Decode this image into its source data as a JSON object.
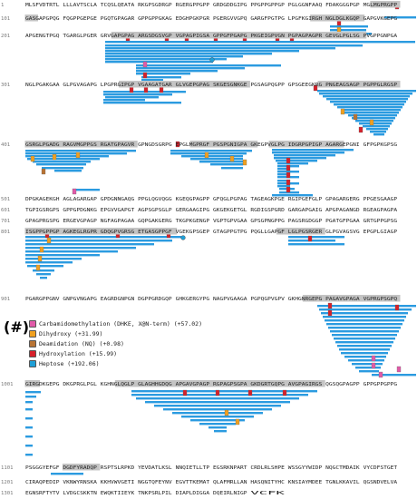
{
  "rows": [
    {
      "n": "1",
      "groups": [
        "MLSFVDTRTL",
        "LLLAVTSCLA",
        "TCQSLQEATA",
        "RKGPSGDRGP",
        "RGERGPPGPP",
        "GRDGDDGIPG",
        "PPGPPGPPGP",
        "PGLGGNFAAQ",
        "FDAKGGGPGP",
        "MGLMGPRGPP"
      ]
    },
    {
      "n": "101",
      "groups": [
        "GASGAPGPQG",
        "FQGPPGEPGE",
        "PGQTGPAGAR",
        "GPPGPPGKAG",
        "EDGHPGKPGR",
        "PGERGVVGPQ",
        "GARGFPGTPG",
        "LPGFKGIRGH",
        "NGLDGLKGQP",
        "GAPGVKGEPG"
      ]
    },
    {
      "n": "201",
      "groups": [
        "APGENGTPGQ",
        "TGARGLPGER",
        "GRVGAPGPAG",
        "ARGSDGSVGP",
        "VGPAGPIGSA",
        "GPPGFPGAPG",
        "PKGEIGPVGN",
        "PGPAGPAGPR",
        "GEVGLPGLSG",
        "PVGPPGNPGA"
      ]
    },
    {
      "n": "301",
      "groups": [
        "NGLPGAKGAA",
        "GLPGVAGAPG",
        "LPGPRGIPGP",
        "VGAAGATGAR",
        "GLVGEPGPAG",
        "SKGESGNKGE",
        "PGSAGPQGPP",
        "GPSGEEGKRG",
        "PNGEAGSAGP",
        "PGPPGLRGSP"
      ]
    },
    {
      "n": "401",
      "groups": [
        "GSRGLPGADG",
        "RAGVMGPPGS",
        "RGATGPAGVR",
        "GPNGDSGRPG",
        "EPGLMGPRGF",
        "PGSPGNIGPA",
        "GKEGPVGLPG",
        "IDGRPGPIGP",
        "AGARGEPGNI",
        "GFPGPKGPSG"
      ]
    },
    {
      "n": "501",
      "groups": [
        "DPGKAGEKGH",
        "AGLAGARGAP",
        "GPDGNNGAQG",
        "PPGLQGVQGG",
        "KGEQGPAGPP",
        "GFQGLPGPAG",
        "TAGEAGKPGE",
        "RGIPGEFGLP",
        "GPAGARGERG",
        "PPGESGAAGP"
      ]
    },
    {
      "n": "601",
      "groups": [
        "TGPIGSRGPS",
        "GPPGPDGNKG",
        "EPGVVGAPGT",
        "AGPSGPSGLP",
        "GERGAAGIPG",
        "GKGEKGETGL",
        "RGDIGSPGRD",
        "GARGAPGAIG",
        "APGPAGANGD",
        "RGEAGPAGPA"
      ]
    },
    {
      "n": "701",
      "groups": [
        "GPAGPRGSPG",
        "ERGEVGPAGP",
        "NGFAGPAGAA",
        "GQPGAKGERG",
        "TKGPKGENGP",
        "VGPTGPVGAA",
        "GPSGPNGPPG",
        "PAGSRGDGGP",
        "PGATGFPGAA",
        "GRTGPPGPSG"
      ]
    },
    {
      "n": "801",
      "groups": [
        "ISGPPGPPGP",
        "AGKEGLRGPR",
        "GDQGPVGRSG",
        "ETGASGPPGF",
        "VGEKGPSGEP",
        "GTAGPPGTPG",
        "PQGLLGAPGF",
        "LGLPGSRGER",
        "GLPGVAGSVG",
        "EPGPLGIAGP"
      ]
    },
    {
      "n": "901",
      "groups": [
        "PGARGPPGNV",
        "GNPGVNGAPG",
        "EAGRDGNPGN",
        "DGPPGRDGQP",
        "GHKGERGYPG",
        "NAGPVGAAGA",
        "PGPQGPVGPV",
        "GKHGNRGEPG",
        "PAGAVGPAGA",
        "VGPRGPSGPQ"
      ]
    },
    {
      "n": "1001",
      "groups": [
        "GIRGDKGEPG",
        "DKGPRGLPGL",
        "KGHNGLQGLP",
        "GLAGHHGDQG",
        "APGAVGPAGP",
        "RGPAGPSGPA",
        "GKDGRTGQPG",
        "AVGPAGIRGS",
        "QGSQGPAGPP",
        "GPPGPPGPPG"
      ]
    },
    {
      "n": "1101",
      "groups": [
        "PSGGGYEFGF",
        "DGDFYRADQP",
        "RSPTSLRPKD",
        "YEVDATLKSL",
        "NNQIETLLTP",
        "EGSRKNPART",
        "CRDLRLSHPE",
        "WSSGYYWIDP",
        "NQGCTMDAIK",
        "VYCDFSTGET"
      ]
    },
    {
      "n": "1201",
      "groups": [
        "CIRAQPEDIP",
        "VKNWYRNSKA",
        "KKHVWVGETI",
        "NGGTQFEYNV",
        "EGVTTKEMAT",
        "QLAFMRLLAN",
        "HASQNITYHC",
        "KNSIAYMDEE",
        "TGNLKKAVIL",
        "QGSNDVELVA"
      ]
    },
    {
      "n": "1301",
      "groups": [
        "EGNSRFTYTV",
        "LVDGCSKKTN",
        "EWQKTIIEYK",
        "TNKPSRLPIL",
        "DIAPLDIGGA",
        "DQEIRLNIGP",
        "VCFK"
      ]
    }
  ],
  "legend": {
    "marker": "(#)",
    "items": [
      {
        "code": "C",
        "label": "Carbamidomethylation (DHKE, X@N-term) (+57.02)",
        "color": "#e05aa8"
      },
      {
        "code": "O",
        "label": "Dihydroxy (+31.99)",
        "color": "#f0a020"
      },
      {
        "code": "D",
        "label": "Deamidation (NQ) (+0.98)",
        "color": "#b87333"
      },
      {
        "code": "H",
        "label": "Hydroxylation (+15.99)",
        "color": "#d6202a"
      },
      {
        "code": "H",
        "label": "Heptose (+192.06)",
        "color": "#1f9fd6"
      }
    ]
  },
  "colors": {
    "peptide": "#2b9be0",
    "text": "#222222",
    "line_number": "#7a7a7a",
    "covered_bg": "#c4c4c4"
  }
}
